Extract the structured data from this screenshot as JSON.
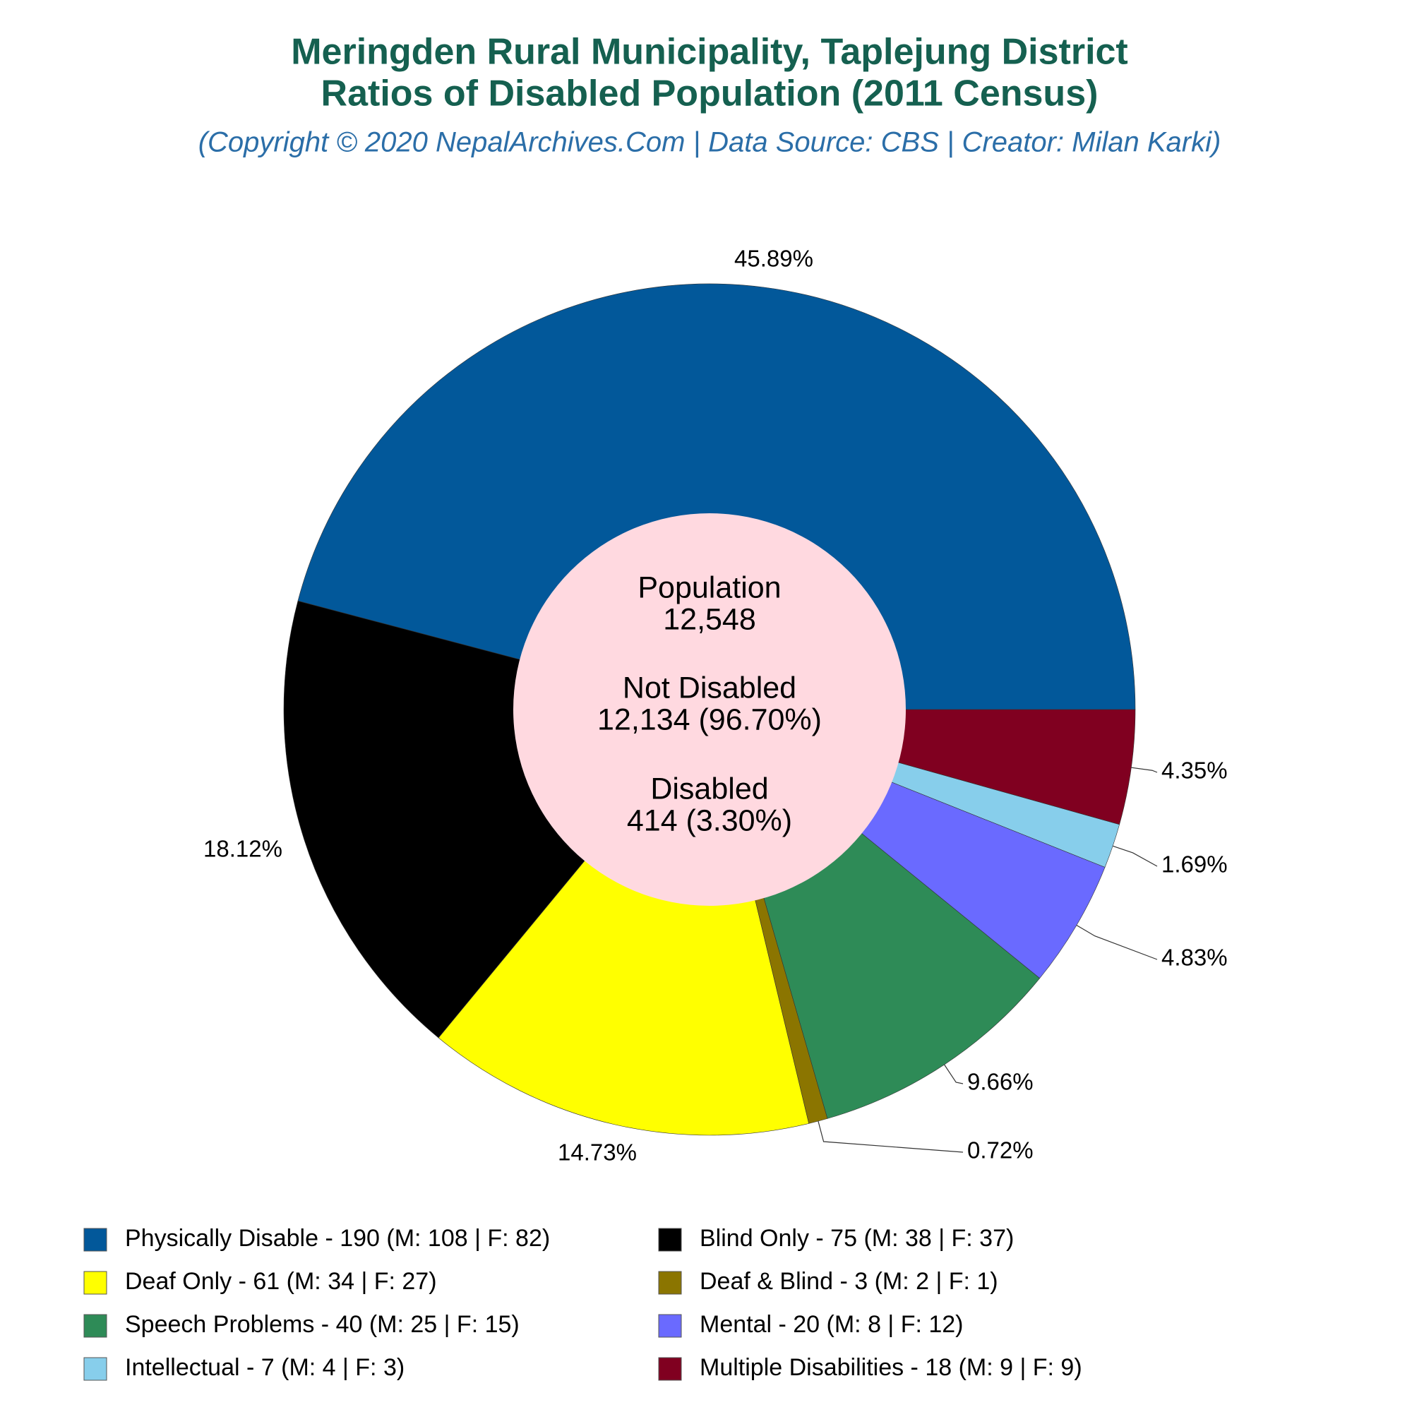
{
  "chart_data": {
    "type": "donut",
    "title": "Meringden Rural Municipality, Taplejung District",
    "subtitle": "Ratios of Disabled Population (2011 Census)",
    "credit": "(Copyright © 2020 NepalArchives.Com | Data Source: CBS | Creator: Milan Karki)",
    "center_text": [
      "Population",
      "12,548",
      "Not Disabled",
      "12,134 (96.70%)",
      "Disabled",
      "414 (3.30%)"
    ],
    "series": [
      {
        "name": "Physically Disable - 190 (M: 108 | F: 82)",
        "color": "#02589a",
        "values": [
          45.89
        ],
        "value_labels": [
          "45.89%"
        ]
      },
      {
        "name": "Blind Only - 75 (M: 38 | F: 37)",
        "color": "#000000",
        "values": [
          18.12
        ],
        "value_labels": [
          "18.12%"
        ]
      },
      {
        "name": "Deaf Only - 61 (M: 34 | F: 27)",
        "color": "#ffff00",
        "values": [
          14.73
        ],
        "value_labels": [
          "14.73%"
        ]
      },
      {
        "name": "Deaf & Blind - 3 (M: 2 | F: 1)",
        "color": "#8b7500",
        "values": [
          0.72
        ],
        "value_labels": [
          "0.72%"
        ]
      },
      {
        "name": "Speech Problems - 40 (M: 25 | F: 15)",
        "color": "#2e8b57",
        "values": [
          9.66
        ],
        "value_labels": [
          "9.66%"
        ]
      },
      {
        "name": "Mental - 20 (M: 8 | F: 12)",
        "color": "#6a6aff",
        "values": [
          4.83
        ],
        "value_labels": [
          "4.83%"
        ]
      },
      {
        "name": "Intellectual - 7 (M: 4 | F: 3)",
        "color": "#87ceeb",
        "values": [
          1.69
        ],
        "value_labels": [
          "1.69%"
        ]
      },
      {
        "name": "Multiple Disabilities - 18 (M: 9 | F: 9)",
        "color": "#800020",
        "values": [
          4.35
        ],
        "value_labels": [
          "4.35%"
        ]
      }
    ],
    "center_color": "#ffd9e0"
  }
}
